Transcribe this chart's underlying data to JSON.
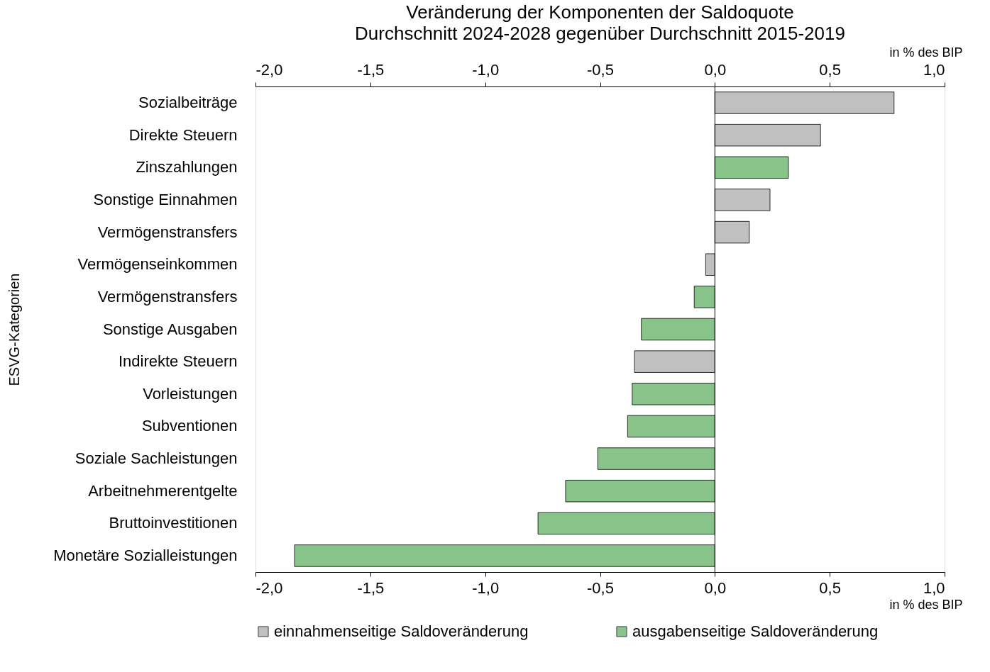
{
  "chart_data": {
    "type": "bar",
    "orientation": "horizontal",
    "title": "Veränderung der Komponenten der Saldoquote",
    "subtitle": "Durchschnitt 2024-2028 gegenüber Durchschnitt 2015-2019",
    "xlabel": "in % des BIP",
    "x2label": "in % des BIP",
    "ylabel": "ESVG-Kategorien",
    "categories": [
      "Sozialbeiträge",
      "Direkte Steuern",
      "Zinszahlungen",
      "Sonstige Einnahmen",
      "Vermögenstransfers",
      "Vermögenseinkommen",
      "Vermögenstransfers",
      "Sonstige Ausgaben",
      "Indirekte Steuern",
      "Vorleistungen",
      "Subventionen",
      "Soziale Sachleistungen",
      "Arbeitnehmerentgelte",
      "Bruttoinvestitionen",
      "Monetäre Sozialleistungen"
    ],
    "series": [
      {
        "name": "einnahmenseitige Saldoveränderung",
        "color": "#c0c0c0",
        "values": [
          0.78,
          0.46,
          null,
          0.24,
          0.15,
          -0.04,
          null,
          null,
          -0.35,
          null,
          null,
          null,
          null,
          null,
          null
        ]
      },
      {
        "name": "ausgabenseitige Saldoveränderung",
        "color": "#88c48a",
        "values": [
          null,
          null,
          0.32,
          null,
          null,
          null,
          -0.09,
          -0.32,
          null,
          -0.36,
          -0.38,
          -0.51,
          -0.65,
          -0.77,
          -1.83
        ]
      }
    ],
    "xlim": [
      -2.0,
      1.0
    ],
    "xticks": [
      {
        "value": -2.0,
        "label": "-2,0"
      },
      {
        "value": -1.5,
        "label": "-1,5"
      },
      {
        "value": -1.0,
        "label": "-1,0"
      },
      {
        "value": -0.5,
        "label": "-0,5"
      },
      {
        "value": 0.0,
        "label": "0,0"
      },
      {
        "value": 0.5,
        "label": "0,5"
      },
      {
        "value": 1.0,
        "label": "1,0"
      }
    ],
    "x2lim": [
      -2.0,
      1.0
    ],
    "x2ticks": [
      {
        "value": -2.0,
        "label": "-2,0"
      },
      {
        "value": -1.5,
        "label": "-1,5"
      },
      {
        "value": -1.0,
        "label": "-1,0"
      },
      {
        "value": -0.5,
        "label": "-0,5"
      },
      {
        "value": 0.0,
        "label": "0,0"
      },
      {
        "value": 0.5,
        "label": "0,5"
      },
      {
        "value": 1.0,
        "label": "1,0"
      }
    ],
    "ref_lines": [
      {
        "axis": "x",
        "value": 0.0
      }
    ],
    "grid": false,
    "legend": "bottom"
  }
}
